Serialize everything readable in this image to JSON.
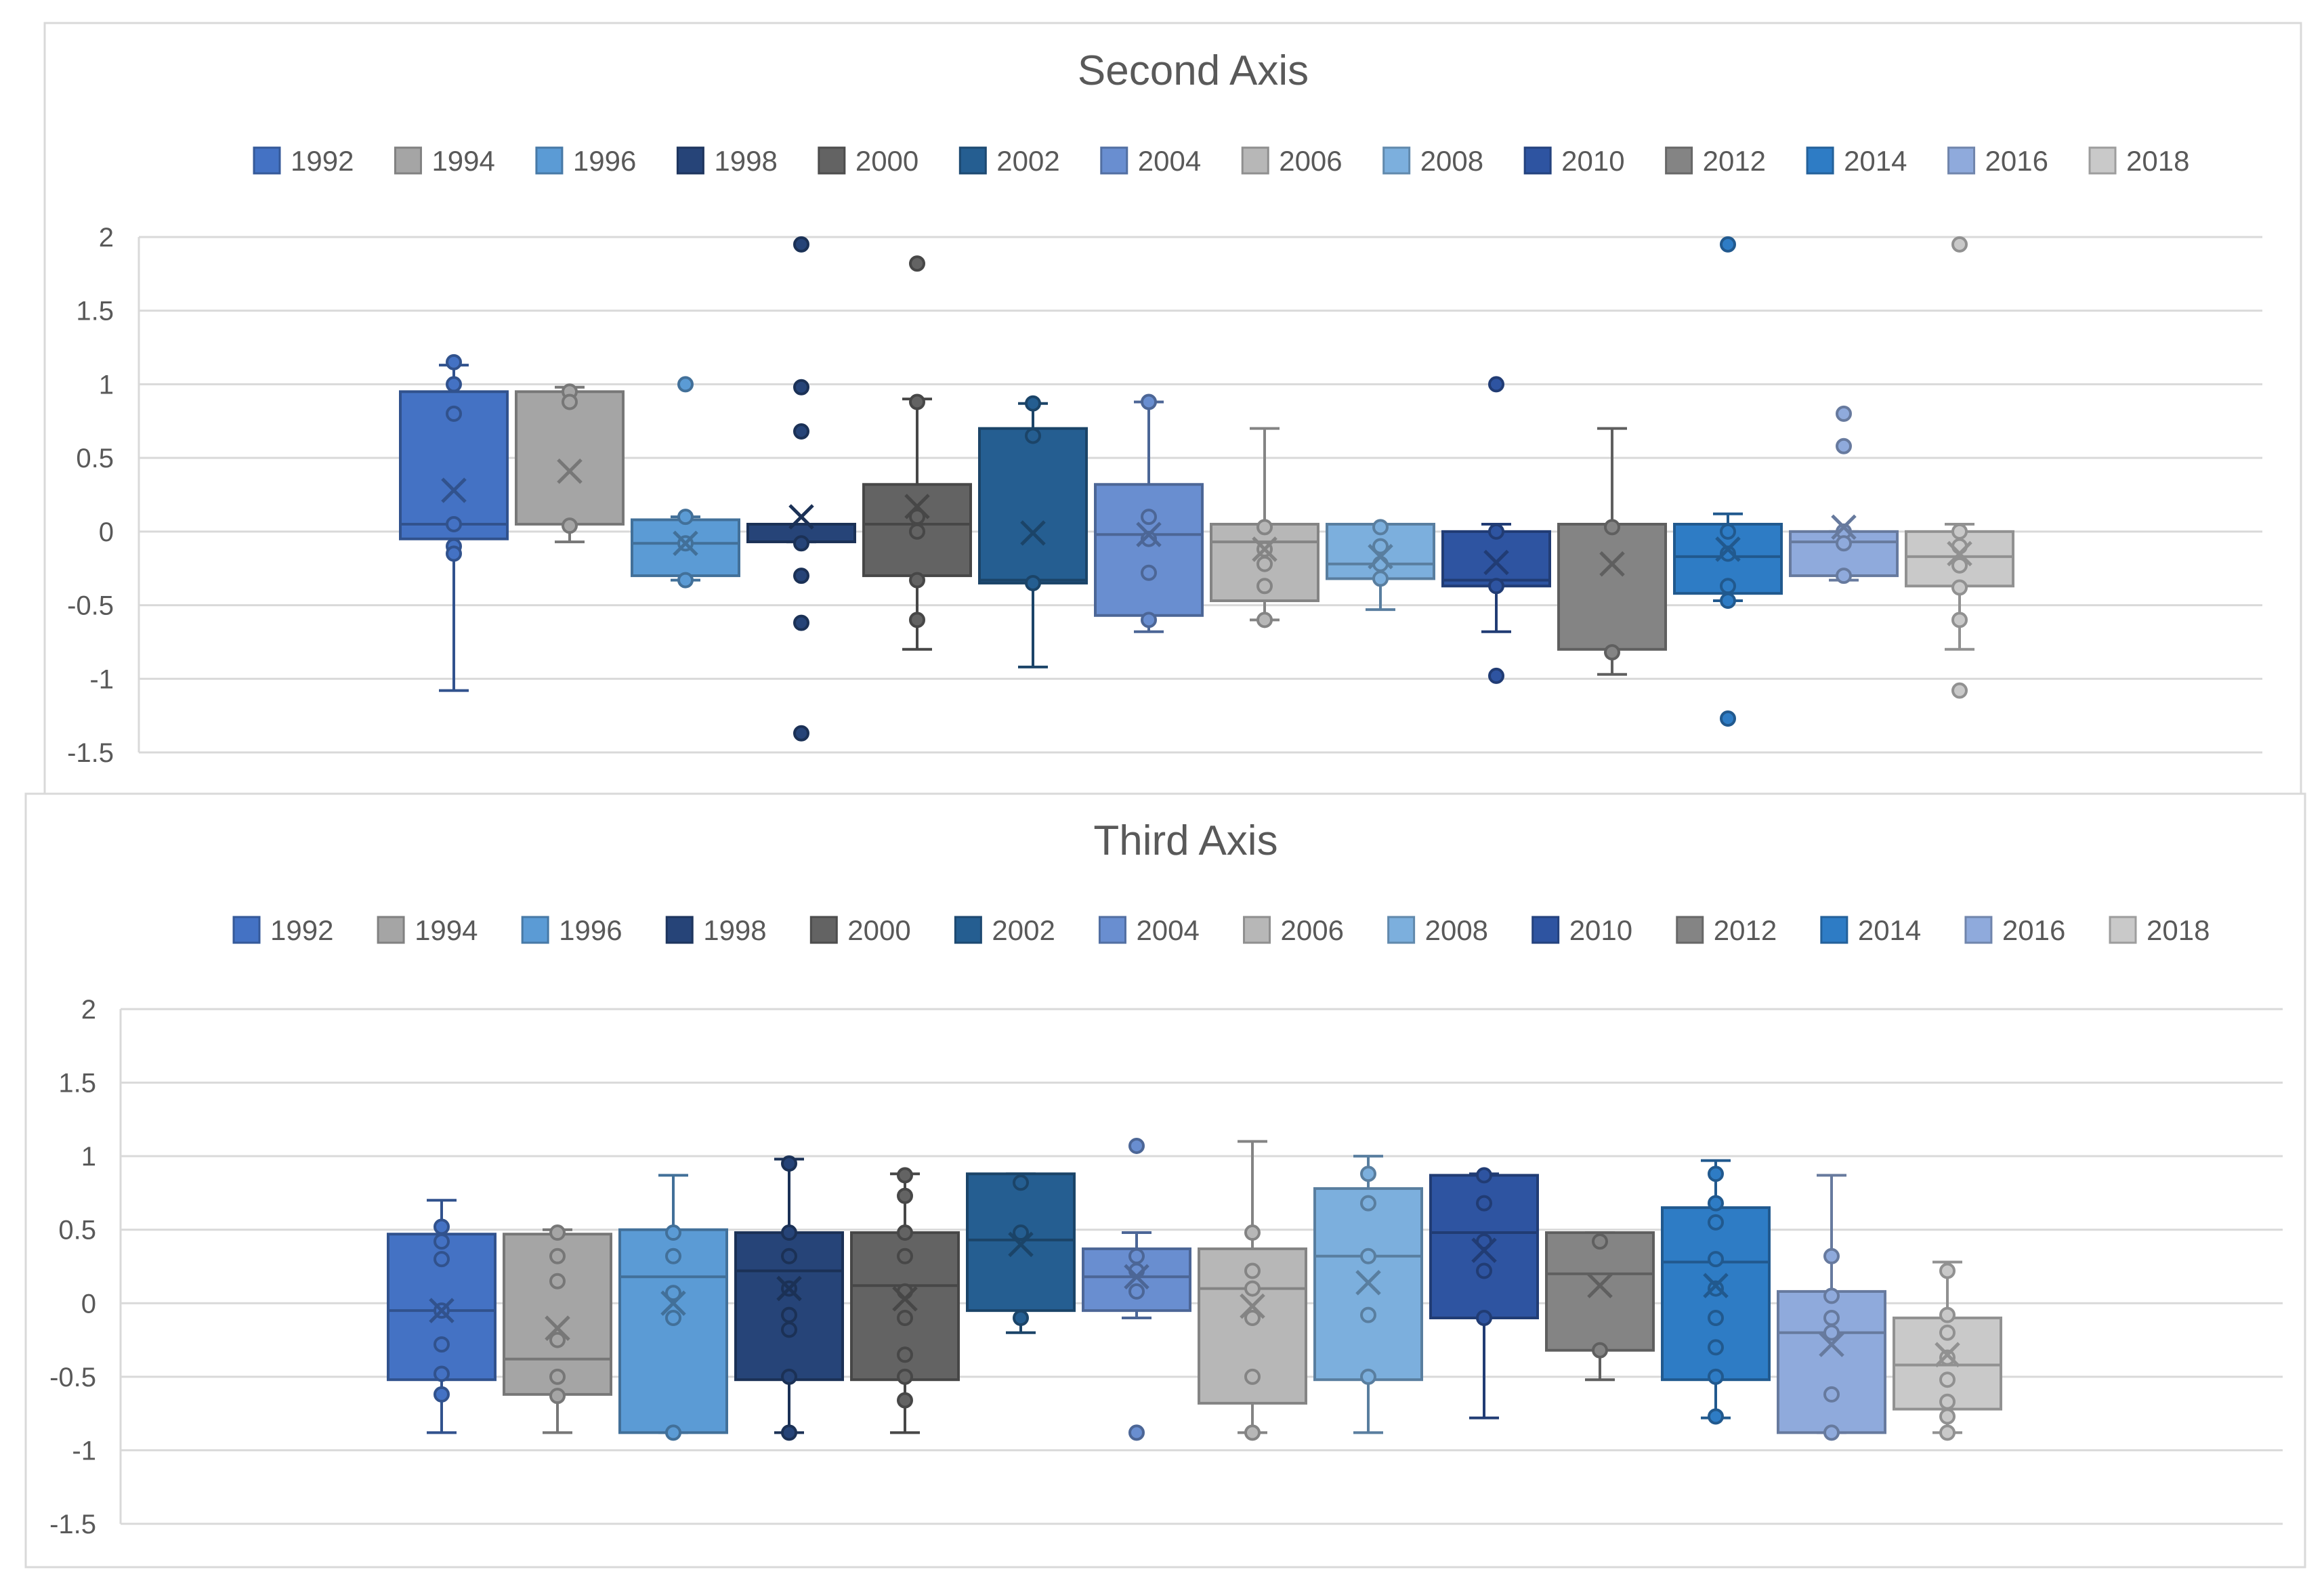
{
  "chart_data": [
    {
      "type": "box",
      "title": "Second Axis",
      "ylim": [
        -1.5,
        2
      ],
      "yticks": [
        2,
        1.5,
        1,
        0.5,
        0,
        -0.5,
        -1,
        -1.5
      ],
      "legend_position": "top",
      "series": [
        {
          "name": "1992",
          "color": "#4472c4",
          "min": -1.08,
          "q1": -0.05,
          "median": 0.05,
          "q3": 0.95,
          "max": 1.13,
          "mean": 0.28,
          "points": [
            1.15,
            1.0,
            0.8,
            0.05,
            -0.1,
            -0.15
          ]
        },
        {
          "name": "1994",
          "color": "#a5a5a5",
          "min": -0.07,
          "q1": 0.05,
          "median": 0.05,
          "q3": 0.95,
          "max": 0.98,
          "mean": 0.41,
          "points": [
            0.95,
            0.88,
            0.04
          ]
        },
        {
          "name": "1996",
          "color": "#5b9bd5",
          "min": -0.33,
          "q1": -0.3,
          "median": -0.08,
          "q3": 0.08,
          "max": 0.1,
          "mean": -0.08,
          "points": [
            1.0,
            0.1,
            -0.08,
            -0.33
          ]
        },
        {
          "name": "1998",
          "color": "#264478",
          "min": -0.07,
          "q1": -0.07,
          "median": 0.05,
          "q3": 0.05,
          "max": 0.05,
          "mean": 0.1,
          "points": [
            1.95,
            0.98,
            0.68,
            -0.08,
            -0.3,
            -0.62,
            -1.37
          ]
        },
        {
          "name": "2000",
          "color": "#636363",
          "min": -0.8,
          "q1": -0.3,
          "median": 0.05,
          "q3": 0.32,
          "max": 0.9,
          "mean": 0.17,
          "points": [
            1.82,
            0.88,
            0.1,
            0.0,
            -0.33,
            -0.6
          ]
        },
        {
          "name": "2002",
          "color": "#255e91",
          "min": -0.92,
          "q1": -0.35,
          "median": -0.33,
          "q3": 0.7,
          "max": 0.87,
          "mean": -0.01,
          "points": [
            0.87,
            0.65,
            -0.35
          ]
        },
        {
          "name": "2004",
          "color": "#698ed0",
          "min": -0.68,
          "q1": -0.57,
          "median": -0.02,
          "q3": 0.32,
          "max": 0.88,
          "mean": -0.02,
          "points": [
            0.88,
            0.1,
            -0.05,
            -0.28,
            -0.6
          ]
        },
        {
          "name": "2006",
          "color": "#b7b7b7",
          "min": -0.6,
          "q1": -0.47,
          "median": -0.07,
          "q3": 0.05,
          "max": 0.7,
          "mean": -0.12,
          "points": [
            0.03,
            -0.12,
            -0.22,
            -0.37,
            -0.6
          ]
        },
        {
          "name": "2008",
          "color": "#7cafdd",
          "min": -0.53,
          "q1": -0.32,
          "median": -0.22,
          "q3": 0.05,
          "max": 0.05,
          "mean": -0.17,
          "points": [
            0.03,
            -0.1,
            -0.22,
            -0.32
          ]
        },
        {
          "name": "2010",
          "color": "#2e54a1",
          "min": -0.68,
          "q1": -0.37,
          "median": -0.33,
          "q3": 0.0,
          "max": 0.05,
          "mean": -0.21,
          "points": [
            1.0,
            0.0,
            -0.37,
            -0.98
          ]
        },
        {
          "name": "2012",
          "color": "#848484",
          "min": -0.97,
          "q1": -0.8,
          "median": 0.05,
          "q3": 0.05,
          "max": 0.7,
          "mean": -0.22,
          "points": [
            0.03,
            -0.82
          ]
        },
        {
          "name": "2014",
          "color": "#2e7cc5",
          "min": -0.47,
          "q1": -0.42,
          "median": -0.17,
          "q3": 0.05,
          "max": 0.12,
          "mean": -0.12,
          "points": [
            1.95,
            0.0,
            -0.15,
            -0.37,
            -0.47,
            -1.27
          ]
        },
        {
          "name": "2016",
          "color": "#8faadc",
          "min": -0.33,
          "q1": -0.3,
          "median": -0.07,
          "q3": 0.0,
          "max": 0.0,
          "mean": 0.03,
          "points": [
            0.8,
            0.58,
            0.0,
            -0.08,
            -0.3
          ]
        },
        {
          "name": "2018",
          "color": "#c9c9c9",
          "min": -0.8,
          "q1": -0.37,
          "median": -0.17,
          "q3": 0.0,
          "max": 0.05,
          "mean": -0.15,
          "points": [
            1.95,
            0.0,
            -0.1,
            -0.23,
            -0.38,
            -0.6,
            -1.08
          ]
        }
      ]
    },
    {
      "type": "box",
      "title": "Third Axis",
      "ylim": [
        -1.5,
        2
      ],
      "yticks": [
        2,
        1.5,
        1,
        0.5,
        0,
        -0.5,
        -1,
        -1.5
      ],
      "legend_position": "top",
      "series": [
        {
          "name": "1992",
          "color": "#4472c4",
          "min": -0.88,
          "q1": -0.52,
          "median": -0.05,
          "q3": 0.47,
          "max": 0.7,
          "mean": -0.05,
          "points": [
            0.52,
            0.42,
            0.3,
            -0.05,
            -0.28,
            -0.48,
            -0.62
          ]
        },
        {
          "name": "1994",
          "color": "#a5a5a5",
          "min": -0.88,
          "q1": -0.62,
          "median": -0.38,
          "q3": 0.47,
          "max": 0.5,
          "mean": -0.17,
          "points": [
            0.48,
            0.32,
            0.15,
            -0.25,
            -0.5,
            -0.63
          ]
        },
        {
          "name": "1996",
          "color": "#5b9bd5",
          "min": -0.88,
          "q1": -0.88,
          "median": 0.18,
          "q3": 0.5,
          "max": 0.87,
          "mean": 0.0,
          "points": [
            0.48,
            0.32,
            0.07,
            -0.1,
            -0.88
          ]
        },
        {
          "name": "1998",
          "color": "#264478",
          "min": -0.88,
          "q1": -0.52,
          "median": 0.22,
          "q3": 0.48,
          "max": 0.98,
          "mean": 0.1,
          "points": [
            0.95,
            0.48,
            0.32,
            0.1,
            -0.08,
            -0.18,
            -0.5,
            -0.88
          ]
        },
        {
          "name": "2000",
          "color": "#636363",
          "min": -0.88,
          "q1": -0.52,
          "median": 0.12,
          "q3": 0.48,
          "max": 0.88,
          "mean": 0.03,
          "points": [
            0.87,
            0.73,
            0.48,
            0.32,
            0.08,
            -0.1,
            -0.35,
            -0.5,
            -0.66
          ]
        },
        {
          "name": "2002",
          "color": "#255e91",
          "min": -0.2,
          "q1": -0.05,
          "median": 0.43,
          "q3": 0.88,
          "max": 0.88,
          "mean": 0.4,
          "points": [
            0.82,
            0.48,
            -0.1
          ]
        },
        {
          "name": "2004",
          "color": "#698ed0",
          "min": -0.1,
          "q1": -0.05,
          "median": 0.18,
          "q3": 0.37,
          "max": 0.48,
          "mean": 0.18,
          "points": [
            1.07,
            0.32,
            0.22,
            0.08,
            -0.88
          ]
        },
        {
          "name": "2006",
          "color": "#b7b7b7",
          "min": -0.88,
          "q1": -0.68,
          "median": 0.1,
          "q3": 0.37,
          "max": 1.1,
          "mean": -0.02,
          "points": [
            0.48,
            0.22,
            0.1,
            -0.1,
            -0.5,
            -0.88
          ]
        },
        {
          "name": "2008",
          "color": "#7cafdd",
          "min": -0.88,
          "q1": -0.52,
          "median": 0.32,
          "q3": 0.78,
          "max": 1.0,
          "mean": 0.14,
          "points": [
            0.88,
            0.68,
            0.32,
            -0.08,
            -0.5
          ]
        },
        {
          "name": "2010",
          "color": "#2e54a1",
          "min": -0.78,
          "q1": -0.1,
          "median": 0.48,
          "q3": 0.87,
          "max": 0.88,
          "mean": 0.36,
          "points": [
            0.87,
            0.68,
            0.42,
            0.22,
            -0.1
          ]
        },
        {
          "name": "2012",
          "color": "#848484",
          "min": -0.52,
          "q1": -0.32,
          "median": 0.2,
          "q3": 0.48,
          "max": 0.48,
          "mean": 0.12,
          "points": [
            0.42,
            -0.32
          ]
        },
        {
          "name": "2014",
          "color": "#2e7cc5",
          "min": -0.78,
          "q1": -0.52,
          "median": 0.28,
          "q3": 0.65,
          "max": 0.97,
          "mean": 0.12,
          "points": [
            0.88,
            0.68,
            0.55,
            0.3,
            0.1,
            -0.1,
            -0.3,
            -0.5,
            -0.77
          ]
        },
        {
          "name": "2016",
          "color": "#8faadc",
          "min": -0.88,
          "q1": -0.88,
          "median": -0.2,
          "q3": 0.08,
          "max": 0.87,
          "mean": -0.28,
          "points": [
            0.32,
            0.05,
            -0.1,
            -0.2,
            -0.62,
            -0.88
          ]
        },
        {
          "name": "2018",
          "color": "#c9c9c9",
          "min": -0.88,
          "q1": -0.72,
          "median": -0.42,
          "q3": -0.1,
          "max": 0.28,
          "mean": -0.35,
          "points": [
            0.22,
            -0.08,
            -0.2,
            -0.37,
            -0.52,
            -0.67,
            -0.77,
            -0.88
          ]
        }
      ]
    }
  ]
}
